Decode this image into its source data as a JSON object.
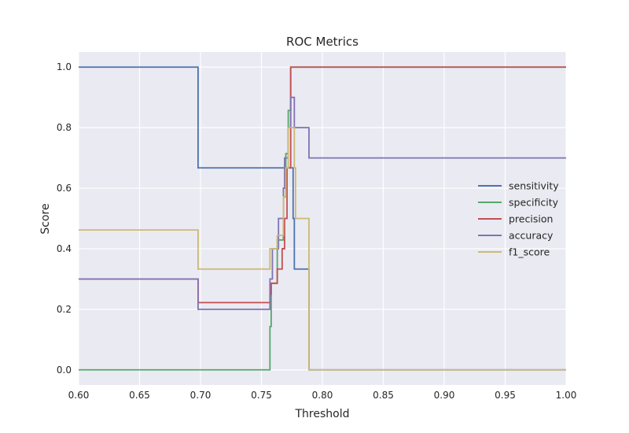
{
  "chart_data": {
    "type": "line",
    "title": "ROC Metrics",
    "xlabel": "Threshold",
    "ylabel": "Score",
    "xlim": [
      0.6,
      1.0
    ],
    "ylim": [
      -0.05,
      1.05
    ],
    "xticks": [
      "0.60",
      "0.65",
      "0.70",
      "0.75",
      "0.80",
      "0.85",
      "0.90",
      "0.95",
      "1.00"
    ],
    "yticks": [
      "0.0",
      "0.2",
      "0.4",
      "0.6",
      "0.8",
      "1.0"
    ],
    "grid": true,
    "legend_position": "center-right",
    "step": "post",
    "series": [
      {
        "name": "sensitivity",
        "color": "#4c72b0",
        "points": [
          [
            0.6,
            1.0
          ],
          [
            0.698,
            0.667
          ],
          [
            0.776,
            0.5
          ],
          [
            0.777,
            0.333
          ],
          [
            0.789,
            0.0
          ],
          [
            1.0,
            0.0
          ]
        ]
      },
      {
        "name": "specificity",
        "color": "#55a868",
        "points": [
          [
            0.6,
            0.0
          ],
          [
            0.757,
            0.143
          ],
          [
            0.758,
            0.286
          ],
          [
            0.763,
            0.429
          ],
          [
            0.768,
            0.571
          ],
          [
            0.77,
            0.714
          ],
          [
            0.772,
            0.857
          ],
          [
            0.774,
            1.0
          ],
          [
            1.0,
            1.0
          ]
        ]
      },
      {
        "name": "precision",
        "color": "#c44e52",
        "points": [
          [
            0.6,
            0.3
          ],
          [
            0.698,
            0.222
          ],
          [
            0.757,
            0.25
          ],
          [
            0.758,
            0.286
          ],
          [
            0.763,
            0.333
          ],
          [
            0.767,
            0.4
          ],
          [
            0.769,
            0.5
          ],
          [
            0.771,
            0.667
          ],
          [
            0.774,
            1.0
          ],
          [
            1.0,
            1.0
          ]
        ]
      },
      {
        "name": "accuracy",
        "color": "#8172b2",
        "points": [
          [
            0.6,
            0.3
          ],
          [
            0.698,
            0.2
          ],
          [
            0.757,
            0.3
          ],
          [
            0.759,
            0.4
          ],
          [
            0.764,
            0.5
          ],
          [
            0.768,
            0.6
          ],
          [
            0.769,
            0.7
          ],
          [
            0.772,
            0.8
          ],
          [
            0.774,
            0.9
          ],
          [
            0.777,
            0.8
          ],
          [
            0.789,
            0.7
          ],
          [
            1.0,
            0.7
          ]
        ]
      },
      {
        "name": "f1_score",
        "color": "#ccb974",
        "points": [
          [
            0.6,
            0.462
          ],
          [
            0.698,
            0.333
          ],
          [
            0.757,
            0.4
          ],
          [
            0.763,
            0.444
          ],
          [
            0.768,
            0.571
          ],
          [
            0.77,
            0.667
          ],
          [
            0.772,
            0.8
          ],
          [
            0.777,
            0.667
          ],
          [
            0.778,
            0.5
          ],
          [
            0.789,
            0.0
          ],
          [
            1.0,
            0.0
          ]
        ]
      }
    ]
  }
}
